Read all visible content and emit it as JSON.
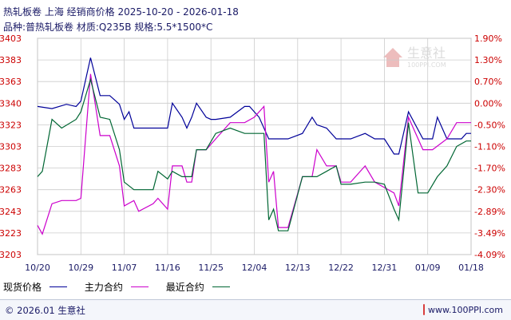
{
  "watermark": {
    "name": "生意社",
    "url": "100PPI.COM"
  },
  "footer": {
    "copyright": "© 2026.01 生意社",
    "url": "www.100PPI.com"
  },
  "chart_data": {
    "type": "line",
    "title": "热轧板卷 上海 经销商价格 2025-10-20 - 2026-01-18",
    "subtitle": "品种:普热轧板卷 材质:Q235B 规格:5.5*1500*C",
    "x_tick_labels": [
      "10/20",
      "10/29",
      "11/07",
      "11/16",
      "11/25",
      "12/04",
      "12/13",
      "12/22",
      "12/31",
      "01/09",
      "01/18"
    ],
    "y_left_ticks": [
      3403,
      3383,
      3363,
      3340,
      3323,
      3303,
      3283,
      3263,
      3243,
      3223,
      3203
    ],
    "y_right_ticks": [
      "1.90%",
      "1.30%",
      "0.70%",
      "0.00%",
      "-0.50%",
      "-1.10%",
      "-1.70%",
      "-2.30%",
      "-2.89%",
      "-3.49%",
      "-4.09%"
    ],
    "ylim": [
      3203,
      3403
    ],
    "xlim": [
      0,
      90
    ],
    "grid": true,
    "colors": {
      "axis_left": "#cc0000",
      "axis_right": "#cc0000",
      "axis_x": "#1a1a66",
      "grid": "#cccccc"
    },
    "series": [
      {
        "name": "现货价格",
        "color": "#000099",
        "x": [
          0,
          3,
          6,
          8,
          9,
          11,
          13,
          15,
          17,
          18,
          19,
          20,
          21,
          24,
          25,
          27,
          28,
          30,
          31,
          32,
          33,
          35,
          36,
          37,
          40,
          43,
          44,
          46,
          48,
          50,
          52,
          55,
          57,
          58,
          60,
          62,
          63,
          65,
          68,
          70,
          72,
          74,
          75,
          77,
          80,
          82,
          83,
          85,
          88,
          89,
          90
        ],
        "y": [
          3340,
          3338,
          3342,
          3340,
          3345,
          3385,
          3350,
          3350,
          3342,
          3328,
          3335,
          3320,
          3320,
          3320,
          3320,
          3320,
          3343,
          3330,
          3320,
          3330,
          3343,
          3330,
          3328,
          3328,
          3330,
          3340,
          3340,
          3330,
          3310,
          3310,
          3310,
          3315,
          3330,
          3323,
          3320,
          3310,
          3310,
          3310,
          3315,
          3310,
          3310,
          3296,
          3296,
          3335,
          3310,
          3310,
          3330,
          3310,
          3310,
          3315,
          3315
        ]
      },
      {
        "name": "主力合约",
        "color": "#cc00cc",
        "x": [
          0,
          1,
          3,
          5,
          8,
          9,
          11,
          13,
          15,
          17,
          18,
          20,
          21,
          24,
          25,
          27,
          28,
          30,
          31,
          32,
          33,
          35,
          37,
          40,
          43,
          45,
          47,
          48,
          49,
          50,
          52,
          55,
          57,
          58,
          60,
          62,
          63,
          65,
          68,
          70,
          72,
          74,
          75,
          77,
          80,
          82,
          85,
          87,
          90
        ],
        "y": [
          3230,
          3222,
          3250,
          3253,
          3253,
          3255,
          3370,
          3313,
          3313,
          3285,
          3248,
          3253,
          3243,
          3250,
          3255,
          3245,
          3285,
          3285,
          3270,
          3270,
          3300,
          3300,
          3310,
          3325,
          3325,
          3330,
          3340,
          3270,
          3280,
          3228,
          3228,
          3275,
          3275,
          3300,
          3285,
          3285,
          3270,
          3270,
          3285,
          3270,
          3265,
          3260,
          3248,
          3330,
          3300,
          3300,
          3310,
          3325,
          3325
        ]
      },
      {
        "name": "最近合约",
        "color": "#006633",
        "x": [
          0,
          1,
          3,
          5,
          8,
          9,
          11,
          13,
          15,
          17,
          18,
          20,
          21,
          24,
          25,
          27,
          28,
          30,
          31,
          32,
          33,
          35,
          37,
          40,
          43,
          45,
          47,
          48,
          49,
          50,
          52,
          55,
          57,
          58,
          60,
          62,
          63,
          65,
          68,
          70,
          72,
          74,
          75,
          77,
          79,
          81,
          83,
          85,
          87,
          89,
          90
        ],
        "y": [
          3275,
          3280,
          3328,
          3320,
          3328,
          3335,
          3365,
          3330,
          3328,
          3300,
          3270,
          3263,
          3263,
          3263,
          3280,
          3273,
          3280,
          3275,
          3275,
          3275,
          3300,
          3300,
          3315,
          3320,
          3315,
          3315,
          3315,
          3235,
          3245,
          3225,
          3225,
          3275,
          3275,
          3275,
          3280,
          3285,
          3268,
          3268,
          3270,
          3270,
          3268,
          3245,
          3235,
          3325,
          3260,
          3260,
          3275,
          3285,
          3303,
          3308,
          3308
        ]
      }
    ]
  }
}
